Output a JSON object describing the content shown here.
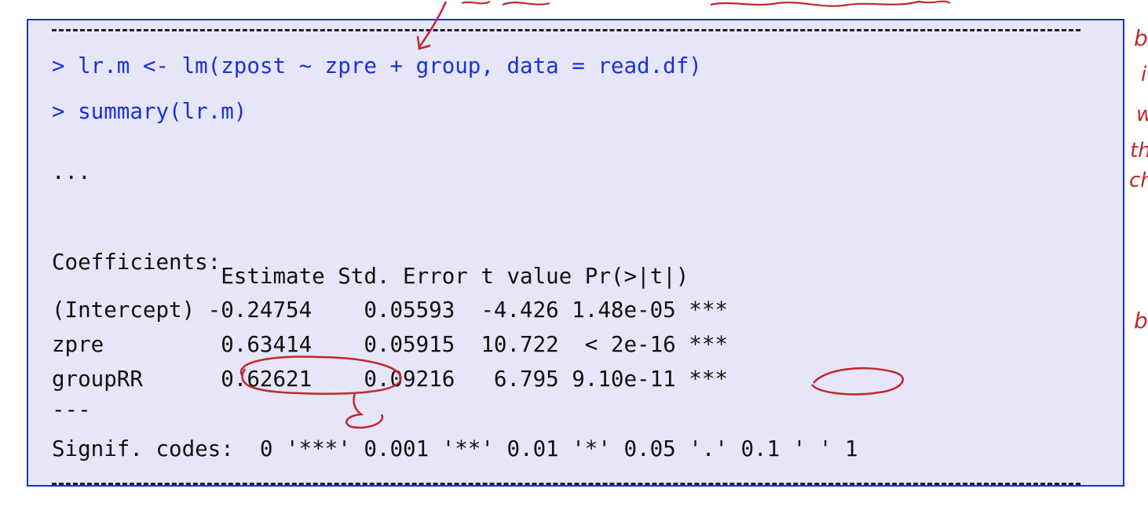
{
  "console": {
    "cmd1": "> lr.m <- lm(zpost ~ zpre + group, data = read.df)",
    "cmd2": "> summary(lr.m)",
    "ellipsis": "...",
    "coef_title": "Coefficients:",
    "header": "             Estimate Std. Error t value Pr(>|t|)",
    "rows": [
      {
        "text": "(Intercept) -0.24754    0.05593  -4.426 1.48e-05 ***"
      },
      {
        "text": "zpre         0.63414    0.05915  10.722  < 2e-16 ***"
      },
      {
        "text": "groupRR      0.62621    0.09216   6.795 9.10e-11 ***"
      }
    ],
    "separator": "---",
    "signif": "Signif. codes:  0 '***' 0.001 '**' 0.01 '*' 0.05 '.' 0.1 ' ' 1"
  },
  "margin_notes": [
    "b",
    "i",
    "w",
    "th",
    "ch",
    "b"
  ],
  "colors": {
    "command": "#1a33d6",
    "box_background": "#e6e6f8",
    "box_border": "#1a33d6",
    "annotation": "#c0282c"
  }
}
